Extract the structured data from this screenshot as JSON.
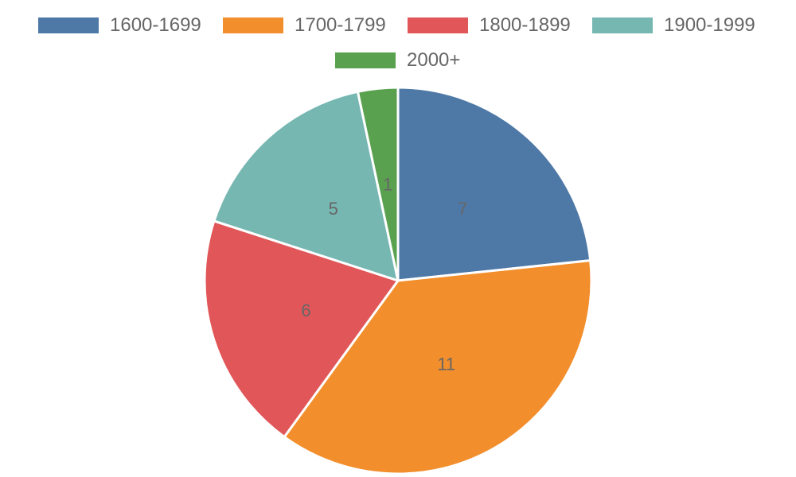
{
  "chart_data": {
    "type": "pie",
    "categories": [
      "1600-1699",
      "1700-1799",
      "1800-1899",
      "1900-1999",
      "2000+"
    ],
    "values": [
      7,
      11,
      6,
      5,
      1
    ],
    "colors": [
      "#4e79a7",
      "#f28e2b",
      "#e15759",
      "#76b7b2",
      "#59a14f"
    ],
    "title": "",
    "legend_position": "top",
    "start_angle": "12 o'clock",
    "direction": "clockwise",
    "data_labels": true
  }
}
